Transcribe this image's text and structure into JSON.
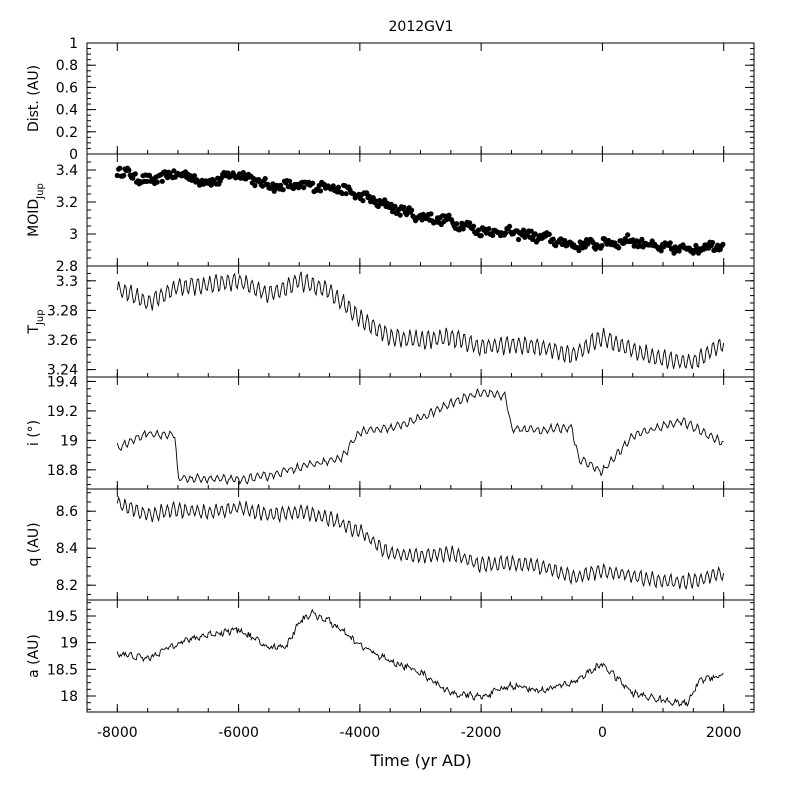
{
  "chart_data": {
    "type": "line",
    "title": "2012GV1",
    "xlabel": "Time (yr AD)",
    "xlim": [
      -8500,
      2500
    ],
    "xticks": [
      -8000,
      -6000,
      -4000,
      -2000,
      0,
      2000
    ],
    "xtick_labels": [
      "-8000",
      "-6000",
      "-4000",
      "-2000",
      "0",
      "2000"
    ],
    "panels": [
      {
        "id": "dist",
        "ylabel": "Dist. (AU)",
        "ylim": [
          0,
          1
        ],
        "yticks": [
          0,
          0.2,
          0.4,
          0.6,
          0.8,
          1
        ],
        "ytick_labels": [
          "0",
          "0.2",
          "0.4",
          "0.6",
          "0.8",
          "1"
        ],
        "style": "none",
        "series": []
      },
      {
        "id": "moid",
        "ylabel": "MOID",
        "ylabel_sub": "Jup",
        "ylim": [
          2.8,
          3.5
        ],
        "yticks": [
          2.8,
          3,
          3.2,
          3.4
        ],
        "ytick_labels": [
          "2.8",
          "3",
          "3.2",
          "3.4"
        ],
        "style": "dots",
        "series": [
          {
            "x": [
              -8000,
              -7500,
              -7000,
              -6500,
              -6000,
              -5500,
              -5000,
              -4500,
              -4000,
              -3500,
              -3000,
              -2500,
              -2000,
              -1500,
              -1000,
              -500,
              0,
              500,
              1000,
              1500,
              2000
            ],
            "values": [
              3.4,
              3.33,
              3.38,
              3.32,
              3.38,
              3.3,
              3.3,
              3.3,
              3.24,
              3.17,
              3.11,
              3.08,
              3.02,
              3.01,
              2.98,
              2.93,
              2.94,
              2.96,
              2.91,
              2.91,
              2.94
            ],
            "noise": 0.028,
            "wiggle": 0.012,
            "period": 330,
            "density": 14
          }
        ]
      },
      {
        "id": "tjup",
        "ylabel": "T",
        "ylabel_sub": "Jup",
        "ylim": [
          3.235,
          3.31
        ],
        "yticks": [
          3.24,
          3.26,
          3.28,
          3.3
        ],
        "ytick_labels": [
          "3.24",
          "3.26",
          "3.28",
          "3.3"
        ],
        "style": "line",
        "series": [
          {
            "x": [
              -8000,
              -7500,
              -7000,
              -6500,
              -6000,
              -5500,
              -5000,
              -4500,
              -4000,
              -3500,
              -3000,
              -2500,
              -2000,
              -1500,
              -1000,
              -500,
              0,
              500,
              1000,
              1500,
              2000
            ],
            "values": [
              3.295,
              3.285,
              3.296,
              3.297,
              3.3,
              3.29,
              3.3,
              3.293,
              3.275,
              3.262,
              3.26,
              3.262,
              3.255,
              3.257,
              3.255,
              3.25,
              3.262,
              3.253,
              3.247,
              3.245,
              3.258
            ],
            "noise": 0.0015,
            "wiggle": 0.0055,
            "period": 100,
            "density": 8
          }
        ]
      },
      {
        "id": "incl",
        "ylabel": "i (°)",
        "ylim": [
          18.67,
          19.43
        ],
        "yticks": [
          18.8,
          19,
          19.2,
          19.4
        ],
        "ytick_labels": [
          "18.8",
          "19",
          "19.2",
          "19.4"
        ],
        "style": "line",
        "series": [
          {
            "x": [
              -8000,
              -7500,
              -7050,
              -7000,
              -6500,
              -6000,
              -5500,
              -5000,
              -4500,
              -4300,
              -4000,
              -3500,
              -3000,
              -2500,
              -2000,
              -1600,
              -1500,
              -1000,
              -500,
              -400,
              0,
              500,
              1000,
              1300,
              1600,
              2000
            ],
            "values": [
              18.95,
              19.05,
              19.03,
              18.74,
              18.74,
              18.73,
              18.76,
              18.82,
              18.86,
              18.88,
              19.06,
              19.08,
              19.15,
              19.25,
              19.33,
              19.3,
              19.08,
              19.07,
              19.09,
              18.88,
              18.79,
              19.03,
              19.1,
              19.13,
              19.07,
              18.98
            ],
            "noise": 0.012,
            "wiggle": 0.022,
            "period": 110,
            "density": 8
          }
        ]
      },
      {
        "id": "q",
        "ylabel": "q (AU)",
        "ylim": [
          8.12,
          8.72
        ],
        "yticks": [
          8.2,
          8.4,
          8.6
        ],
        "ytick_labels": [
          "8.2",
          "8.4",
          "8.6"
        ],
        "style": "line",
        "series": [
          {
            "x": [
              -8000,
              -7500,
              -7000,
              -6500,
              -6000,
              -5500,
              -5000,
              -4500,
              -4000,
              -3500,
              -3000,
              -2500,
              -2000,
              -1500,
              -1000,
              -500,
              0,
              500,
              1000,
              1500,
              2000
            ],
            "values": [
              8.64,
              8.58,
              8.61,
              8.59,
              8.62,
              8.58,
              8.6,
              8.56,
              8.49,
              8.37,
              8.36,
              8.37,
              8.31,
              8.32,
              8.3,
              8.24,
              8.28,
              8.25,
              8.22,
              8.22,
              8.27
            ],
            "noise": 0.012,
            "wiggle": 0.035,
            "period": 100,
            "density": 8
          }
        ]
      },
      {
        "id": "a",
        "ylabel": "a (AU)",
        "ylim": [
          17.7,
          19.8
        ],
        "yticks": [
          18,
          18.5,
          19,
          19.5
        ],
        "ytick_labels": [
          "18",
          "18.5",
          "19",
          "19.5"
        ],
        "style": "line",
        "series": [
          {
            "x": [
              -8000,
              -7500,
              -7000,
              -6500,
              -6000,
              -5500,
              -5200,
              -5000,
              -4800,
              -4500,
              -4000,
              -3500,
              -3000,
              -2500,
              -2000,
              -1500,
              -1000,
              -500,
              0,
              500,
              1000,
              1400,
              1600,
              2000
            ],
            "values": [
              18.8,
              18.7,
              19.0,
              19.15,
              19.25,
              18.9,
              18.95,
              19.4,
              19.55,
              19.4,
              18.95,
              18.65,
              18.45,
              18.05,
              17.98,
              18.2,
              18.1,
              18.25,
              18.6,
              18.05,
              17.92,
              17.85,
              18.3,
              18.4
            ],
            "noise": 0.05,
            "wiggle": 0.03,
            "period": 130,
            "density": 10
          }
        ]
      }
    ]
  }
}
